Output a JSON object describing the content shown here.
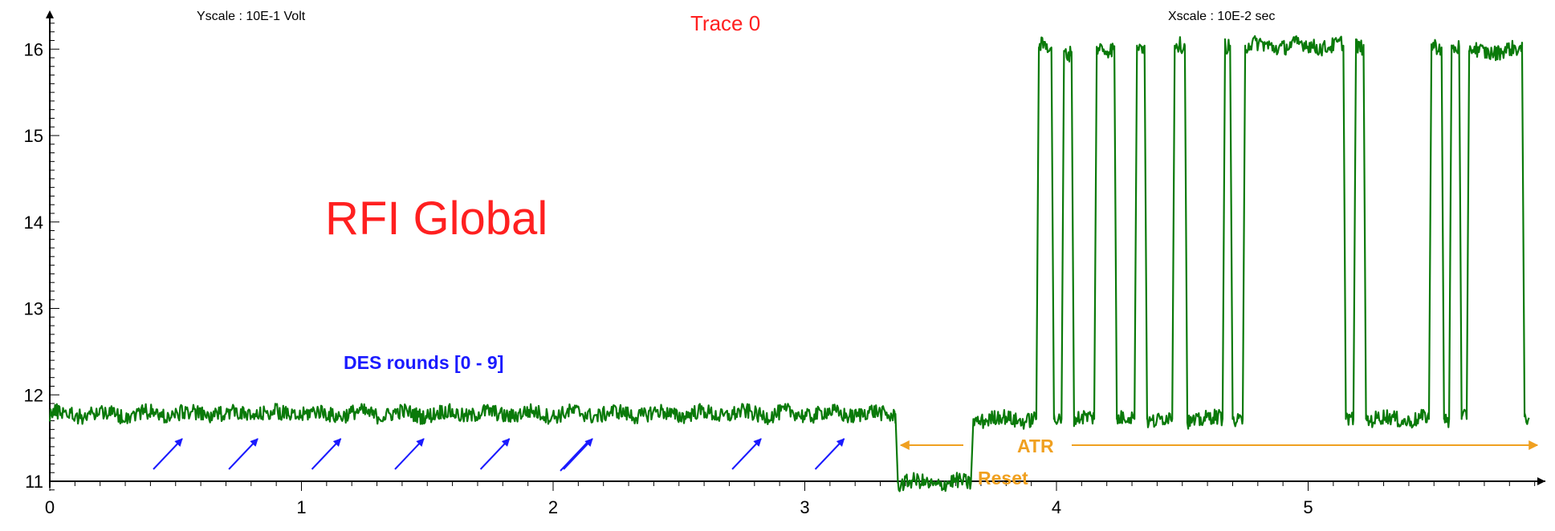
{
  "header": {
    "yscale": "Yscale :   10E-1  Volt",
    "title": "Trace 0",
    "xscale": "Xscale :  10E-2  sec"
  },
  "watermark": "RFI Global",
  "annotations": {
    "des_label": "DES rounds [0 - 9]",
    "reset_label": "Reset",
    "atr_label": "ATR"
  },
  "colors": {
    "trace": "#0a7a0a",
    "axis": "#000000",
    "des": "#1a1aff",
    "reset_atr": "#f0a020",
    "title": "#ff2020"
  },
  "chart_data": {
    "type": "line",
    "title": "Trace 0",
    "xlim": [
      0,
      5.9
    ],
    "ylim": [
      10.9,
      16.3
    ],
    "x_ticks": [
      0,
      1,
      2,
      3,
      4,
      5
    ],
    "y_ticks": [
      11,
      12,
      13,
      14,
      15,
      16
    ],
    "x_minor_step": 0.1,
    "y_minor_step": 0.1,
    "grid": false,
    "series": [
      {
        "levels": [
          [
            0.0,
            11.78
          ],
          [
            3.36,
            11.78
          ],
          [
            3.37,
            10.98
          ],
          [
            3.66,
            10.98
          ],
          [
            3.67,
            11.72
          ],
          [
            3.92,
            11.72
          ],
          [
            3.93,
            16.02
          ],
          [
            3.98,
            16.02
          ],
          [
            3.99,
            11.72
          ],
          [
            4.02,
            11.72
          ],
          [
            4.03,
            15.97
          ],
          [
            4.06,
            15.97
          ],
          [
            4.07,
            11.72
          ],
          [
            4.15,
            11.72
          ],
          [
            4.16,
            16.02
          ],
          [
            4.23,
            16.02
          ],
          [
            4.24,
            11.72
          ],
          [
            4.31,
            11.72
          ],
          [
            4.32,
            16.04
          ],
          [
            4.35,
            16.04
          ],
          [
            4.36,
            11.72
          ],
          [
            4.46,
            11.72
          ],
          [
            4.47,
            16.04
          ],
          [
            4.51,
            16.04
          ],
          [
            4.52,
            11.72
          ],
          [
            4.66,
            11.72
          ],
          [
            4.67,
            16.04
          ],
          [
            4.69,
            16.04
          ],
          [
            4.7,
            11.72
          ],
          [
            4.74,
            11.72
          ],
          [
            4.75,
            16.04
          ],
          [
            5.14,
            16.04
          ],
          [
            5.15,
            11.72
          ],
          [
            5.18,
            11.72
          ],
          [
            5.19,
            16.05
          ],
          [
            5.22,
            16.05
          ],
          [
            5.23,
            11.72
          ],
          [
            5.48,
            11.72
          ],
          [
            5.49,
            16.02
          ],
          [
            5.53,
            16.02
          ],
          [
            5.54,
            11.72
          ],
          [
            5.56,
            11.72
          ],
          [
            5.57,
            16.03
          ],
          [
            5.6,
            16.03
          ],
          [
            5.61,
            11.72
          ],
          [
            5.63,
            11.72
          ],
          [
            5.64,
            15.98
          ],
          [
            5.85,
            15.98
          ],
          [
            5.86,
            11.75
          ],
          [
            5.88,
            11.75
          ]
        ],
        "noise_amplitude": 0.09
      }
    ],
    "des_arrow_tips_x": [
      0.52,
      0.82,
      1.15,
      1.48,
      1.82,
      2.15,
      2.82,
      3.15
    ]
  }
}
